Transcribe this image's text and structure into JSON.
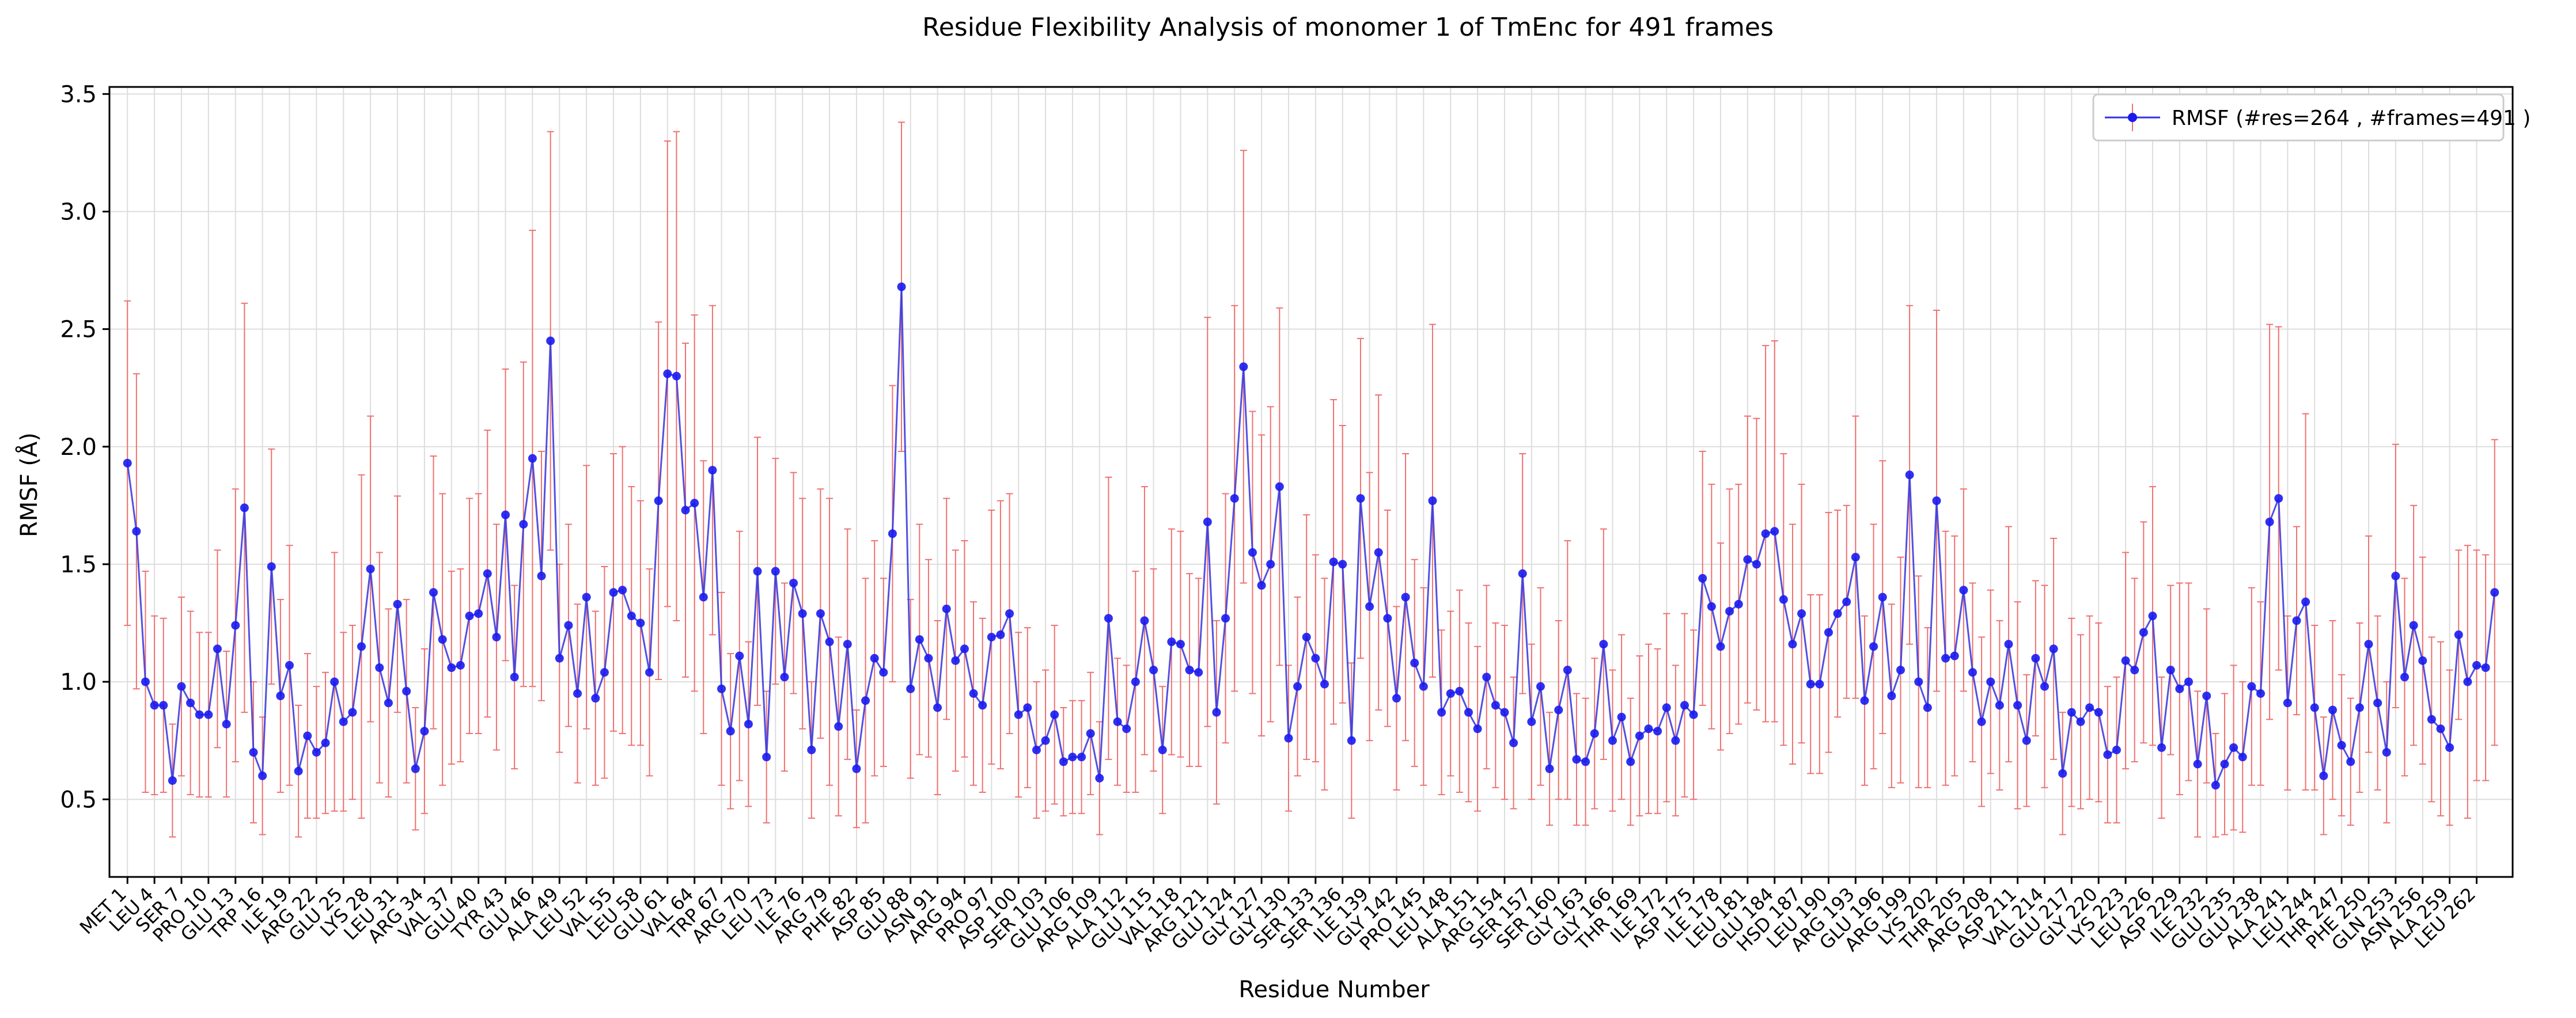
{
  "chart_data": {
    "type": "line",
    "title": "Residue Flexibility Analysis of  monomer 1 of TmEnc for 491 frames",
    "xlabel": "Residue Number",
    "ylabel": "RMSF (Å)",
    "ylim": [
      0.17,
      3.53
    ],
    "yticks": [
      0.5,
      1.0,
      1.5,
      2.0,
      2.5,
      3.0,
      3.5
    ],
    "ytick_labels": [
      "0.5",
      "1.0",
      "1.5",
      "2.0",
      "2.5",
      "3.0",
      "3.5"
    ],
    "x_index_range": [
      -2,
      265
    ],
    "grid": true,
    "legend_position": "top-right",
    "colors": {
      "line": "#3333dd",
      "marker": "#1a1aee",
      "errorbar": "#f07070"
    },
    "xtick_labels": [
      "MET 1",
      "LEU 4",
      "SER 7",
      "PRO 10",
      "GLU 13",
      "TRP 16",
      "ILE 19",
      "ARG 22",
      "GLU 25",
      "LYS 28",
      "LEU 31",
      "ARG 34",
      "VAL 37",
      "GLU 40",
      "TYR 43",
      "GLU 46",
      "ALA 49",
      "LEU 52",
      "VAL 55",
      "LEU 58",
      "GLU 61",
      "VAL 64",
      "TRP 67",
      "ARG 70",
      "LEU 73",
      "ILE 76",
      "ARG 79",
      "PHE 82",
      "ASP 85",
      "GLU 88",
      "ASN 91",
      "ARG 94",
      "PRO 97",
      "ASP 100",
      "SER 103",
      "GLU 106",
      "ARG 109",
      "ALA 112",
      "GLU 115",
      "VAL 118",
      "ARG 121",
      "GLU 124",
      "GLY 127",
      "GLY 130",
      "SER 133",
      "SER 136",
      "ILE 139",
      "GLY 142",
      "PRO 145",
      "LEU 148",
      "ALA 151",
      "ARG 154",
      "SER 157",
      "SER 160",
      "GLY 163",
      "GLY 166",
      "THR 169",
      "ILE 172",
      "ASP 175",
      "ILE 178",
      "LEU 181",
      "GLU 184",
      "HSD 187",
      "LEU 190",
      "ARG 193",
      "GLU 196",
      "ARG 199",
      "LYS 202",
      "THR 205",
      "ARG 208",
      "ASP 211",
      "VAL 214",
      "GLU 217",
      "GLY 220",
      "LYS 223",
      "LEU 226",
      "ASP 229",
      "ILE 232",
      "GLU 235",
      "GLU 238",
      "ALA 241",
      "LEU 244",
      "THR 247",
      "PHE 250",
      "GLN 253",
      "ASN 256",
      "ALA 259",
      "LEU 262"
    ],
    "series": [
      {
        "name": "RMSF (#res=264 , #frames=491 )",
        "values": [
          1.93,
          1.64,
          1.0,
          0.9,
          0.9,
          0.58,
          0.98,
          0.91,
          0.86,
          0.86,
          1.14,
          0.82,
          1.24,
          1.74,
          0.7,
          0.6,
          1.49,
          0.94,
          1.07,
          0.62,
          0.77,
          0.7,
          0.74,
          1.0,
          0.83,
          0.87,
          1.15,
          1.48,
          1.06,
          0.91,
          1.33,
          0.96,
          0.63,
          0.79,
          1.38,
          1.18,
          1.06,
          1.07,
          1.28,
          1.29,
          1.46,
          1.19,
          1.71,
          1.02,
          1.67,
          1.95,
          1.45,
          2.45,
          1.1,
          1.24,
          0.95,
          1.36,
          0.93,
          1.04,
          1.38,
          1.39,
          1.28,
          1.25,
          1.04,
          1.77,
          2.31,
          2.3,
          1.73,
          1.76,
          1.36,
          1.9,
          0.97,
          0.79,
          1.11,
          0.82,
          1.47,
          0.68,
          1.47,
          1.02,
          1.42,
          1.29,
          0.71,
          1.29,
          1.17,
          0.81,
          1.16,
          0.63,
          0.92,
          1.1,
          1.04,
          1.63,
          2.68,
          0.97,
          1.18,
          1.1,
          0.89,
          1.31,
          1.09,
          1.14,
          0.95,
          0.9,
          1.19,
          1.2,
          1.29,
          0.86,
          0.89,
          0.71,
          0.75,
          0.86,
          0.66,
          0.68,
          0.68,
          0.78,
          0.59,
          1.27,
          0.83,
          0.8,
          1.0,
          1.26,
          1.05,
          0.71,
          1.17,
          1.16,
          1.05,
          1.04,
          1.68,
          0.87,
          1.27,
          1.78,
          2.34,
          1.55,
          1.41,
          1.5,
          1.83,
          0.76,
          0.98,
          1.19,
          1.1,
          0.99,
          1.51,
          1.5,
          0.75,
          1.78,
          1.32,
          1.55,
          1.27,
          0.93,
          1.36,
          1.08,
          0.98,
          1.77,
          0.87,
          0.95,
          0.96,
          0.87,
          0.8,
          1.02,
          0.9,
          0.87,
          0.74,
          1.46,
          0.83,
          0.98,
          0.63,
          0.88,
          1.05,
          0.67,
          0.66,
          0.78,
          1.16,
          0.75,
          0.85,
          0.66,
          0.77,
          0.8,
          0.79,
          0.89,
          0.75,
          0.9,
          0.86,
          1.44,
          1.32,
          1.15,
          1.3,
          1.33,
          1.52,
          1.5,
          1.63,
          1.64,
          1.35,
          1.16,
          1.29,
          0.99,
          0.99,
          1.21,
          1.29,
          1.34,
          1.53,
          0.92,
          1.15,
          1.36,
          0.94,
          1.05,
          1.88,
          1.0,
          0.89,
          1.77,
          1.1,
          1.11,
          1.39,
          1.04,
          0.83,
          1.0,
          0.9,
          1.16,
          0.9,
          0.75,
          1.1,
          0.98,
          1.14,
          0.61,
          0.87,
          0.83,
          0.89,
          0.87,
          0.69,
          0.71,
          1.09,
          1.05,
          1.21,
          1.28,
          0.72,
          1.05,
          0.97,
          1.0,
          0.65,
          0.94,
          0.56,
          0.65,
          0.72,
          0.68,
          0.98,
          0.95,
          1.68,
          1.78,
          0.91,
          1.26,
          1.34,
          0.89,
          0.6,
          0.88,
          0.73,
          0.66,
          0.89,
          1.16,
          0.91,
          0.7,
          1.45,
          1.02,
          1.24,
          1.09,
          0.84,
          0.8,
          0.72,
          1.2,
          1.0,
          1.07,
          1.06,
          1.38
        ],
        "errors": [
          0.69,
          0.67,
          0.47,
          0.38,
          0.37,
          0.24,
          0.38,
          0.39,
          0.35,
          0.35,
          0.42,
          0.31,
          0.58,
          0.87,
          0.3,
          0.25,
          0.5,
          0.41,
          0.51,
          0.28,
          0.35,
          0.28,
          0.3,
          0.55,
          0.38,
          0.37,
          0.73,
          0.65,
          0.49,
          0.4,
          0.46,
          0.39,
          0.26,
          0.35,
          0.58,
          0.62,
          0.41,
          0.41,
          0.5,
          0.51,
          0.61,
          0.48,
          0.62,
          0.39,
          0.69,
          0.97,
          0.53,
          0.89,
          0.4,
          0.43,
          0.38,
          0.56,
          0.37,
          0.45,
          0.59,
          0.61,
          0.55,
          0.52,
          0.44,
          0.76,
          0.99,
          1.04,
          0.71,
          0.8,
          0.58,
          0.7,
          0.41,
          0.33,
          0.53,
          0.35,
          0.57,
          0.28,
          0.48,
          0.4,
          0.47,
          0.49,
          0.29,
          0.53,
          0.61,
          0.38,
          0.49,
          0.25,
          0.52,
          0.5,
          0.4,
          0.63,
          0.7,
          0.38,
          0.49,
          0.42,
          0.37,
          0.47,
          0.47,
          0.46,
          0.39,
          0.37,
          0.54,
          0.57,
          0.51,
          0.35,
          0.34,
          0.29,
          0.3,
          0.38,
          0.23,
          0.24,
          0.24,
          0.26,
          0.24,
          0.6,
          0.27,
          0.27,
          0.47,
          0.57,
          0.43,
          0.27,
          0.48,
          0.48,
          0.41,
          0.4,
          0.87,
          0.39,
          0.53,
          0.82,
          0.92,
          0.6,
          0.64,
          0.67,
          0.76,
          0.31,
          0.38,
          0.52,
          0.44,
          0.45,
          0.69,
          0.59,
          0.33,
          0.68,
          0.57,
          0.67,
          0.46,
          0.39,
          0.61,
          0.44,
          0.42,
          0.75,
          0.35,
          0.35,
          0.43,
          0.38,
          0.35,
          0.39,
          0.35,
          0.37,
          0.28,
          0.51,
          0.33,
          0.42,
          0.24,
          0.38,
          0.55,
          0.28,
          0.27,
          0.32,
          0.49,
          0.3,
          0.35,
          0.27,
          0.34,
          0.36,
          0.35,
          0.4,
          0.32,
          0.39,
          0.36,
          0.54,
          0.52,
          0.44,
          0.52,
          0.51,
          0.61,
          0.62,
          0.8,
          0.81,
          0.62,
          0.51,
          0.55,
          0.38,
          0.38,
          0.51,
          0.44,
          0.41,
          0.6,
          0.36,
          0.52,
          0.58,
          0.39,
          0.48,
          0.72,
          0.45,
          0.34,
          0.81,
          0.54,
          0.51,
          0.43,
          0.38,
          0.36,
          0.39,
          0.36,
          0.5,
          0.44,
          0.28,
          0.33,
          0.43,
          0.47,
          0.26,
          0.4,
          0.37,
          0.39,
          0.38,
          0.29,
          0.31,
          0.46,
          0.39,
          0.47,
          0.55,
          0.3,
          0.36,
          0.45,
          0.42,
          0.31,
          0.37,
          0.22,
          0.3,
          0.35,
          0.32,
          0.42,
          0.39,
          0.84,
          0.73,
          0.37,
          0.4,
          0.8,
          0.35,
          0.25,
          0.38,
          0.3,
          0.27,
          0.36,
          0.46,
          0.37,
          0.3,
          0.56,
          0.42,
          0.51,
          0.44,
          0.35,
          0.37,
          0.33,
          0.36,
          0.58,
          0.49,
          0.48,
          0.65
        ]
      }
    ]
  }
}
